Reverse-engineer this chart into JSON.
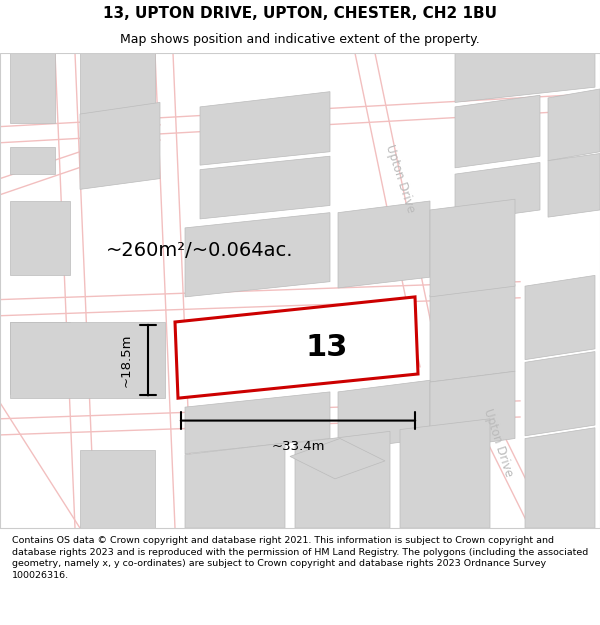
{
  "title": "13, UPTON DRIVE, UPTON, CHESTER, CH2 1BU",
  "subtitle": "Map shows position and indicative extent of the property.",
  "footer": "Contains OS data © Crown copyright and database right 2021. This information is subject to Crown copyright and database rights 2023 and is reproduced with the permission of HM Land Registry. The polygons (including the associated geometry, namely x, y co-ordinates) are subject to Crown copyright and database rights 2023 Ordnance Survey 100026316.",
  "area_label": "~260m²/~0.064ac.",
  "width_label": "~33.4m",
  "height_label": "~18.5m",
  "plot_number": "13",
  "road_label1": "Upton Drive",
  "road_label2": "Upton Drive",
  "bg_color": "#ffffff",
  "building_color": "#d3d3d3",
  "building_edge": "#bbbbbb",
  "road_color": "#f2bfbf",
  "highlight_color": "#cc0000",
  "road_label_color": "#bbbbbb",
  "footer_fontsize": 6.8,
  "title_fontsize": 11,
  "subtitle_fontsize": 9
}
